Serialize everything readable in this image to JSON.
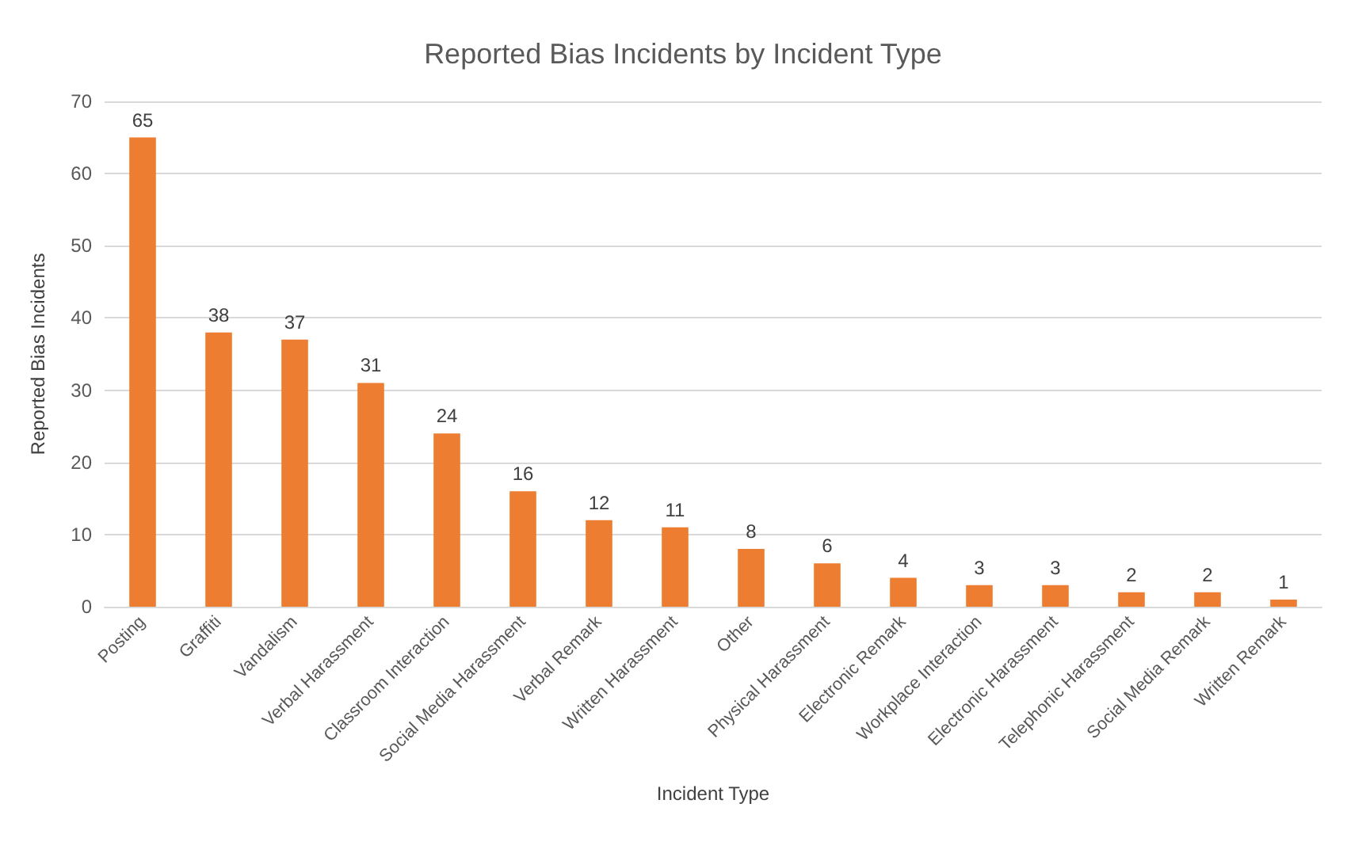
{
  "chart_data": {
    "type": "bar",
    "title": "Reported Bias Incidents by Incident Type",
    "xlabel": "Incident Type",
    "ylabel": "Reported Bias Incidents",
    "categories": [
      "Posting",
      "Graffiti",
      "Vandalism",
      "Verbal Harassment",
      "Classroom Interaction",
      "Social Media Harassment",
      "Verbal Remark",
      "Written Harassment",
      "Other",
      "Physical Harassment",
      "Electronic Remark",
      "Workplace Interaction",
      "Electronic Harassment",
      "Telephonic Harassment",
      "Social Media Remark",
      "Written Remark"
    ],
    "values": [
      65,
      38,
      37,
      31,
      24,
      16,
      12,
      11,
      8,
      6,
      4,
      3,
      3,
      2,
      2,
      1
    ],
    "color": "#ed7d31",
    "ylim": [
      0,
      70
    ],
    "yticks": [
      0,
      10,
      20,
      30,
      40,
      50,
      60,
      70
    ],
    "grid": "y",
    "data_labels": true
  }
}
